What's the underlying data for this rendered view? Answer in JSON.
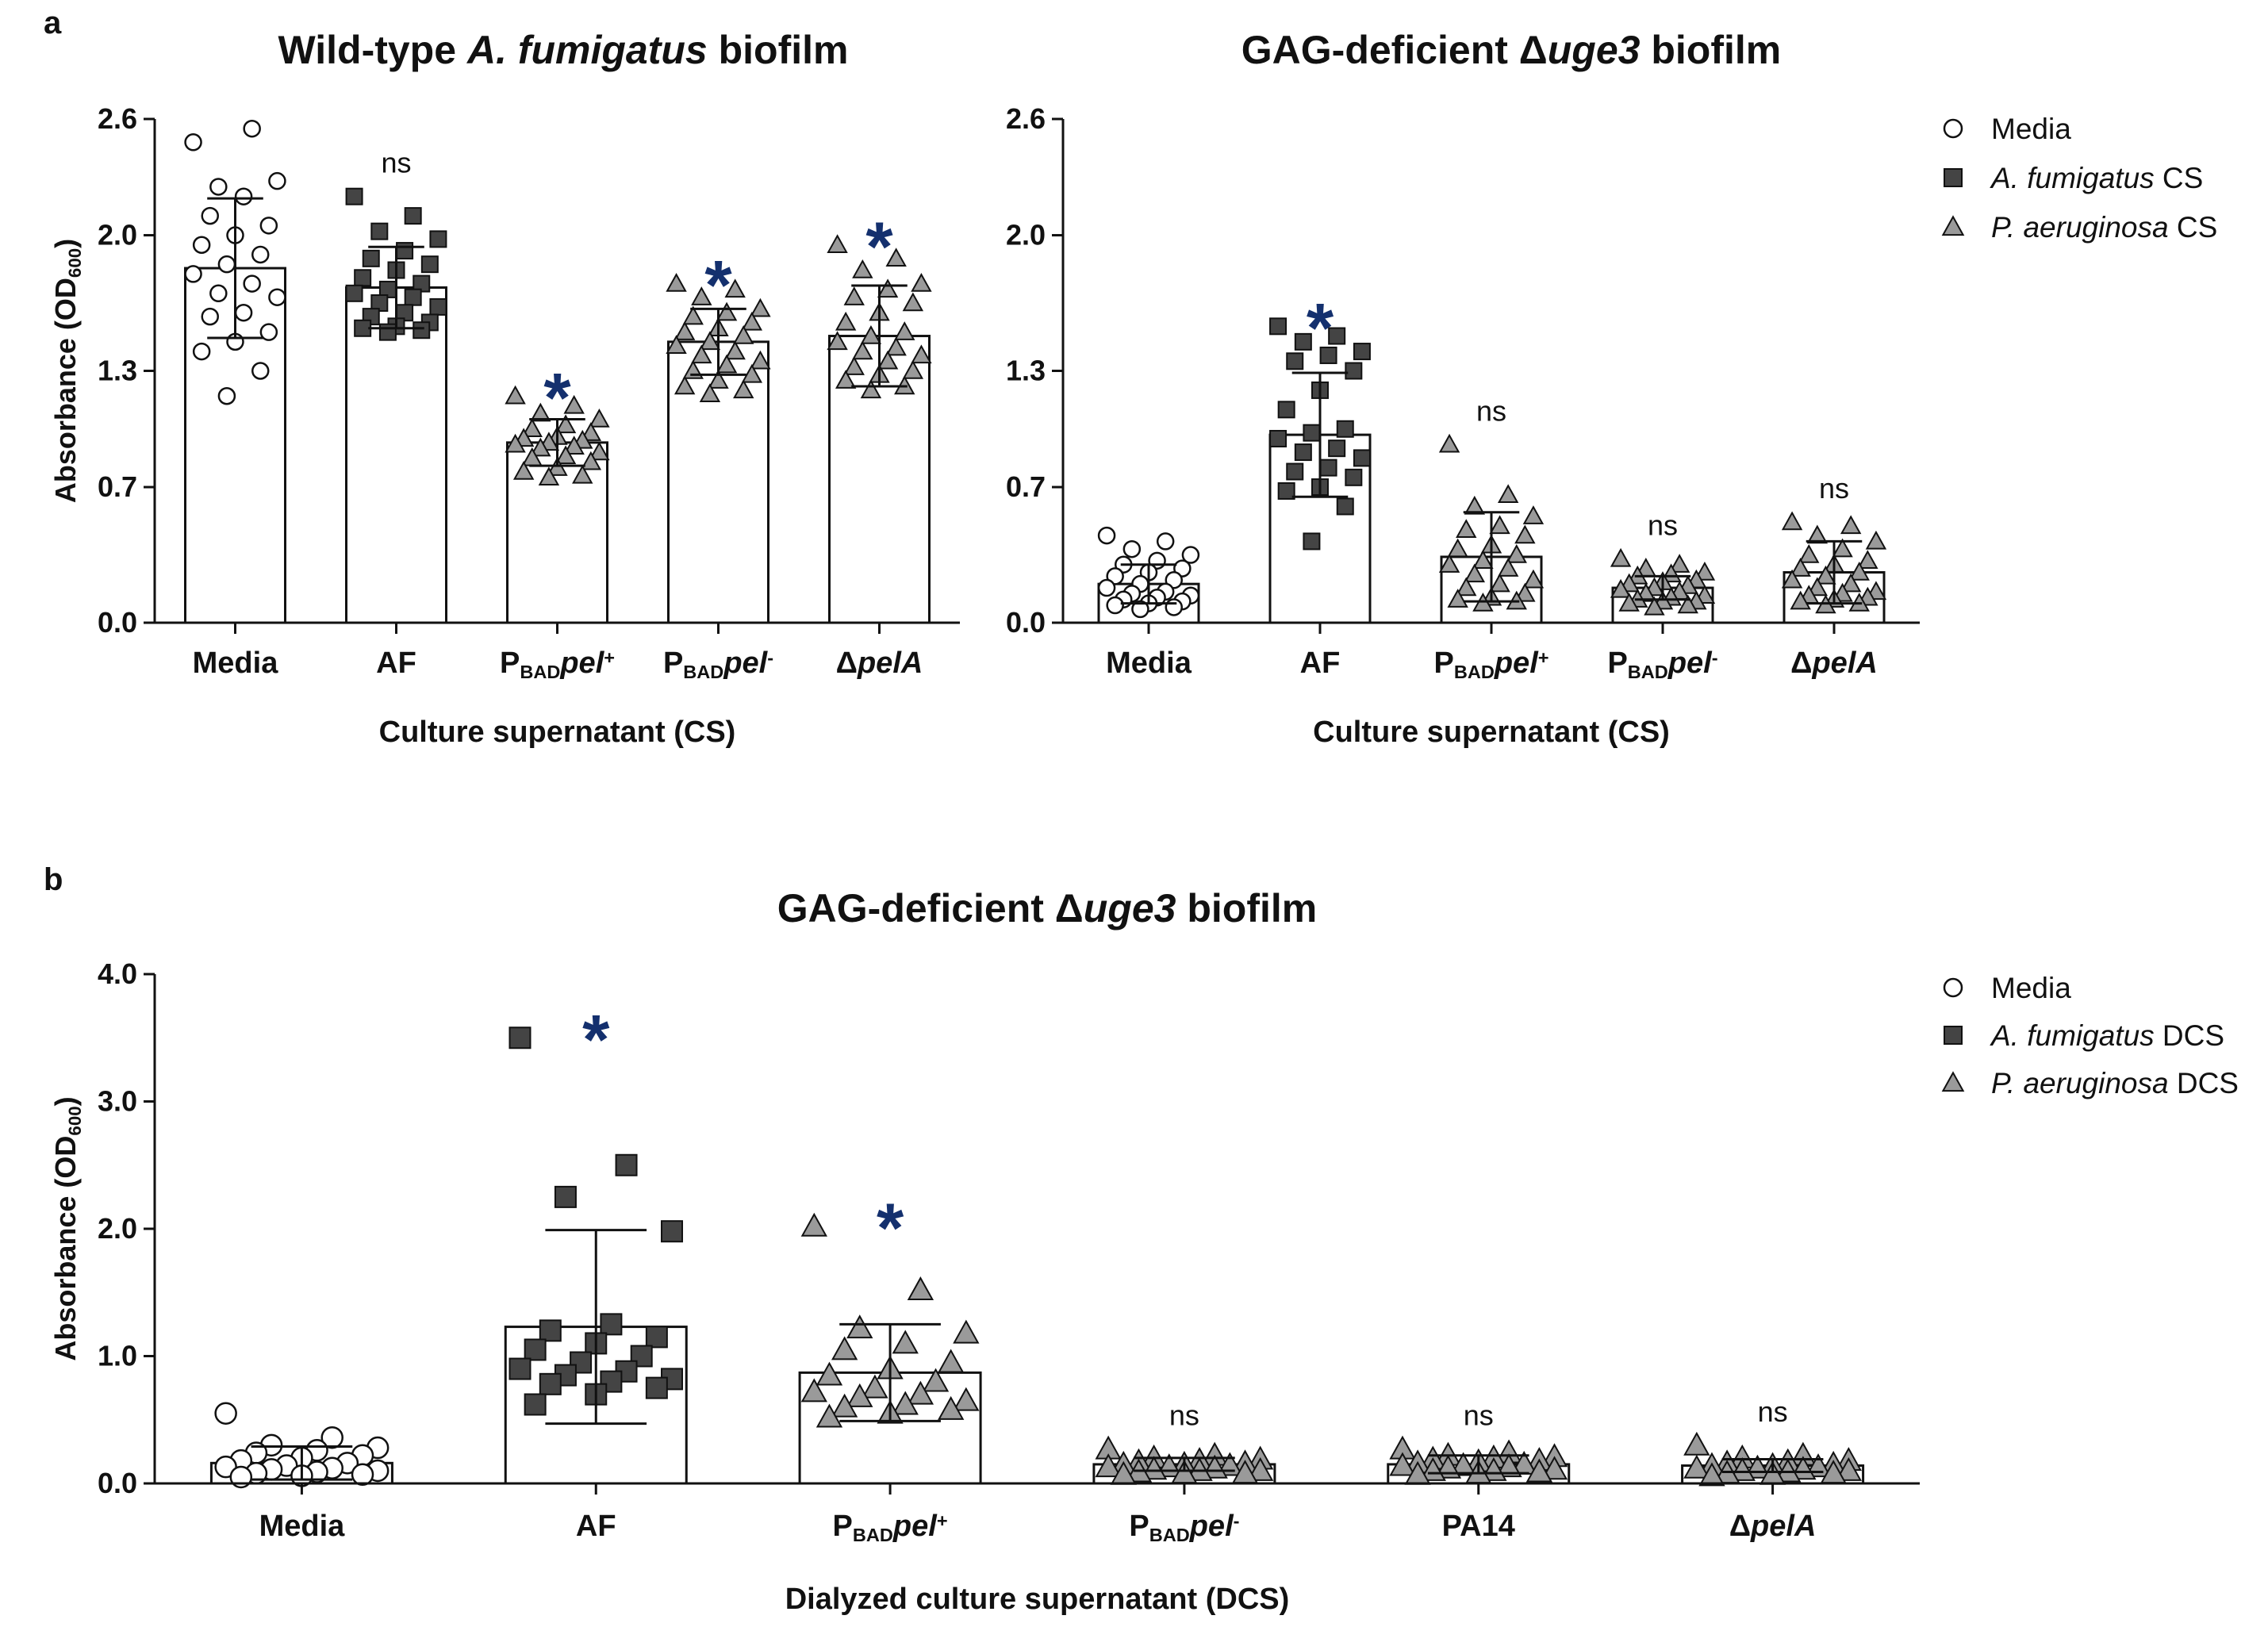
{
  "panel_labels": {
    "a": "a",
    "b": "b"
  },
  "colors": {
    "star": "#14306e",
    "square": "#444444",
    "triangle": "#9a9a9a",
    "circle": "#ffffff",
    "stroke": "#111111"
  },
  "chart_data": [
    {
      "id": "a1",
      "type": "bar",
      "title_parts": [
        {
          "text": "Wild-type ",
          "italic": false
        },
        {
          "text": "A. fumigatus",
          "italic": true
        },
        {
          "text": " biofilm",
          "italic": false
        }
      ],
      "ylabel": "Absorbance (OD",
      "ylabel_sub": "600",
      "ylabel_end": ")",
      "xlabel": "Culture supernatant (CS)",
      "ylim": [
        0,
        2.6
      ],
      "yticks": [
        "0.0",
        "0.7",
        "1.3",
        "2.0",
        "2.6"
      ],
      "categories": [
        {
          "parts": [
            {
              "text": "Media"
            }
          ]
        },
        {
          "parts": [
            {
              "text": "AF"
            }
          ]
        },
        {
          "parts": [
            {
              "text": "P"
            },
            {
              "text": "BAD",
              "sub": true
            },
            {
              "text": "pel",
              "italic": true
            },
            {
              "text": "+",
              "sup": true
            }
          ]
        },
        {
          "parts": [
            {
              "text": "P"
            },
            {
              "text": "BAD",
              "sub": true
            },
            {
              "text": "pel",
              "italic": true
            },
            {
              "text": "-",
              "sup": true
            }
          ]
        },
        {
          "parts": [
            {
              "text": "Δ"
            },
            {
              "text": "pelA",
              "italic": true
            }
          ]
        }
      ],
      "means": [
        1.83,
        1.73,
        0.93,
        1.45,
        1.48
      ],
      "sd": [
        0.36,
        0.21,
        0.12,
        0.17,
        0.26
      ],
      "markers": [
        "circle",
        "square",
        "triangle",
        "triangle",
        "triangle"
      ],
      "points": [
        [
          2.48,
          2.55,
          2.25,
          2.28,
          2.2,
          2.1,
          2.05,
          2.0,
          1.95,
          1.9,
          1.85,
          1.8,
          1.75,
          1.7,
          1.68,
          1.6,
          1.58,
          1.5,
          1.45,
          1.4,
          1.3,
          1.17
        ],
        [
          2.2,
          2.1,
          2.02,
          1.98,
          1.92,
          1.88,
          1.85,
          1.82,
          1.78,
          1.75,
          1.72,
          1.7,
          1.68,
          1.65,
          1.63,
          1.6,
          1.58,
          1.55,
          1.53,
          1.52,
          1.51,
          1.5
        ],
        [
          1.17,
          1.12,
          1.08,
          1.05,
          1.02,
          1.0,
          0.98,
          0.96,
          0.95,
          0.94,
          0.93,
          0.92,
          0.91,
          0.9,
          0.88,
          0.86,
          0.85,
          0.83,
          0.8,
          0.78,
          0.76,
          0.75
        ],
        [
          1.75,
          1.72,
          1.68,
          1.62,
          1.6,
          1.58,
          1.55,
          1.52,
          1.5,
          1.48,
          1.45,
          1.43,
          1.4,
          1.38,
          1.35,
          1.33,
          1.3,
          1.28,
          1.25,
          1.22,
          1.2,
          1.18
        ],
        [
          1.95,
          1.88,
          1.82,
          1.75,
          1.72,
          1.68,
          1.65,
          1.6,
          1.55,
          1.5,
          1.48,
          1.45,
          1.42,
          1.4,
          1.38,
          1.35,
          1.32,
          1.3,
          1.28,
          1.25,
          1.22,
          1.2
        ]
      ],
      "annotations": [
        "",
        "ns",
        "*",
        "*",
        "*"
      ],
      "legend": null
    },
    {
      "id": "a2",
      "type": "bar",
      "title_parts": [
        {
          "text": "GAG-deficient Δ",
          "italic": false
        },
        {
          "text": "uge3",
          "italic": true
        },
        {
          "text": " biofilm",
          "italic": false
        }
      ],
      "ylabel": "",
      "xlabel": "Culture supernatant (CS)",
      "ylim": [
        0,
        2.6
      ],
      "yticks": [
        "0.0",
        "0.7",
        "1.3",
        "2.0",
        "2.6"
      ],
      "categories": [
        {
          "parts": [
            {
              "text": "Media"
            }
          ]
        },
        {
          "parts": [
            {
              "text": "AF"
            }
          ]
        },
        {
          "parts": [
            {
              "text": "P"
            },
            {
              "text": "BAD",
              "sub": true
            },
            {
              "text": "pel",
              "italic": true
            },
            {
              "text": "+",
              "sup": true
            }
          ]
        },
        {
          "parts": [
            {
              "text": "P"
            },
            {
              "text": "BAD",
              "sub": true
            },
            {
              "text": "pel",
              "italic": true
            },
            {
              "text": "-",
              "sup": true
            }
          ]
        },
        {
          "parts": [
            {
              "text": "Δ"
            },
            {
              "text": "pelA",
              "italic": true
            }
          ]
        }
      ],
      "means": [
        0.2,
        0.97,
        0.34,
        0.18,
        0.26
      ],
      "sd": [
        0.1,
        0.32,
        0.23,
        0.06,
        0.16
      ],
      "markers": [
        "circle",
        "square",
        "triangle",
        "triangle",
        "triangle"
      ],
      "points": [
        [
          0.45,
          0.42,
          0.38,
          0.35,
          0.32,
          0.3,
          0.28,
          0.26,
          0.24,
          0.22,
          0.2,
          0.18,
          0.16,
          0.15,
          0.14,
          0.13,
          0.12,
          0.11,
          0.1,
          0.09,
          0.08,
          0.07
        ],
        [
          1.53,
          1.48,
          1.45,
          1.4,
          1.38,
          1.35,
          1.3,
          1.2,
          1.1,
          1.0,
          0.98,
          0.95,
          0.9,
          0.88,
          0.85,
          0.8,
          0.78,
          0.75,
          0.7,
          0.68,
          0.6,
          0.42
        ],
        [
          0.92,
          0.66,
          0.6,
          0.55,
          0.5,
          0.48,
          0.45,
          0.4,
          0.38,
          0.35,
          0.32,
          0.3,
          0.28,
          0.25,
          0.22,
          0.2,
          0.18,
          0.15,
          0.13,
          0.12,
          0.11,
          0.1
        ],
        [
          0.33,
          0.3,
          0.28,
          0.26,
          0.25,
          0.24,
          0.22,
          0.21,
          0.2,
          0.19,
          0.18,
          0.17,
          0.16,
          0.15,
          0.14,
          0.13,
          0.12,
          0.11,
          0.11,
          0.1,
          0.09,
          0.08
        ],
        [
          0.52,
          0.5,
          0.45,
          0.42,
          0.38,
          0.35,
          0.32,
          0.3,
          0.28,
          0.26,
          0.24,
          0.22,
          0.2,
          0.18,
          0.16,
          0.15,
          0.14,
          0.13,
          0.12,
          0.11,
          0.1,
          0.09
        ]
      ],
      "annotations": [
        "",
        "*",
        "ns",
        "ns",
        "ns"
      ],
      "legend": [
        {
          "marker": "circle",
          "parts": [
            {
              "text": "Media"
            }
          ]
        },
        {
          "marker": "square",
          "parts": [
            {
              "text": "A. fumigatus",
              "italic": true
            },
            {
              "text": " CS"
            }
          ]
        },
        {
          "marker": "triangle",
          "parts": [
            {
              "text": "P. aeruginosa",
              "italic": true
            },
            {
              "text": " CS"
            }
          ]
        }
      ]
    },
    {
      "id": "b",
      "type": "bar",
      "title_parts": [
        {
          "text": "GAG-deficient Δ",
          "italic": false
        },
        {
          "text": "uge3",
          "italic": true
        },
        {
          "text": " biofilm",
          "italic": false
        }
      ],
      "ylabel": "Absorbance (OD",
      "ylabel_sub": "600",
      "ylabel_end": ")",
      "xlabel": "Dialyzed culture supernatant (DCS)",
      "ylim": [
        0,
        4.0
      ],
      "yticks": [
        "0.0",
        "1.0",
        "2.0",
        "3.0",
        "4.0"
      ],
      "categories": [
        {
          "parts": [
            {
              "text": "Media"
            }
          ]
        },
        {
          "parts": [
            {
              "text": "AF"
            }
          ]
        },
        {
          "parts": [
            {
              "text": "P"
            },
            {
              "text": "BAD",
              "sub": true
            },
            {
              "text": "pel",
              "italic": true
            },
            {
              "text": "+",
              "sup": true
            }
          ]
        },
        {
          "parts": [
            {
              "text": "P"
            },
            {
              "text": "BAD",
              "sub": true
            },
            {
              "text": "pel",
              "italic": true
            },
            {
              "text": "-",
              "sup": true
            }
          ]
        },
        {
          "parts": [
            {
              "text": "PA14"
            }
          ]
        },
        {
          "parts": [
            {
              "text": "Δ"
            },
            {
              "text": "pelA",
              "italic": true
            }
          ]
        }
      ],
      "means": [
        0.16,
        1.23,
        0.87,
        0.15,
        0.15,
        0.14
      ],
      "sd": [
        0.13,
        0.76,
        0.38,
        0.05,
        0.07,
        0.05
      ],
      "markers": [
        "circle",
        "square",
        "triangle",
        "triangle",
        "triangle",
        "triangle"
      ],
      "points": [
        [
          0.55,
          0.36,
          0.3,
          0.28,
          0.26,
          0.24,
          0.22,
          0.2,
          0.18,
          0.16,
          0.14,
          0.13,
          0.12,
          0.11,
          0.1,
          0.09,
          0.08,
          0.07,
          0.06,
          0.05
        ],
        [
          3.5,
          2.5,
          2.25,
          1.98,
          1.25,
          1.2,
          1.15,
          1.1,
          1.05,
          1.0,
          0.95,
          0.9,
          0.88,
          0.85,
          0.82,
          0.8,
          0.78,
          0.75,
          0.7,
          0.62
        ],
        [
          2.02,
          1.52,
          1.22,
          1.18,
          1.1,
          1.05,
          0.95,
          0.9,
          0.85,
          0.8,
          0.75,
          0.72,
          0.7,
          0.68,
          0.65,
          0.62,
          0.6,
          0.58,
          0.55,
          0.52
        ],
        [
          0.27,
          0.22,
          0.2,
          0.19,
          0.18,
          0.17,
          0.16,
          0.15,
          0.15,
          0.14,
          0.13,
          0.13,
          0.12,
          0.11,
          0.1,
          0.1,
          0.09,
          0.08,
          0.08,
          0.07
        ],
        [
          0.27,
          0.24,
          0.22,
          0.21,
          0.2,
          0.19,
          0.18,
          0.17,
          0.16,
          0.15,
          0.14,
          0.14,
          0.13,
          0.12,
          0.11,
          0.1,
          0.1,
          0.09,
          0.08,
          0.07
        ],
        [
          0.3,
          0.22,
          0.2,
          0.18,
          0.17,
          0.16,
          0.15,
          0.14,
          0.14,
          0.13,
          0.12,
          0.12,
          0.11,
          0.1,
          0.1,
          0.09,
          0.08,
          0.08,
          0.07,
          0.06
        ]
      ],
      "annotations": [
        "",
        "*",
        "*",
        "ns",
        "ns",
        "ns"
      ],
      "legend": [
        {
          "marker": "circle",
          "parts": [
            {
              "text": "Media"
            }
          ]
        },
        {
          "marker": "square",
          "parts": [
            {
              "text": "A. fumigatus",
              "italic": true
            },
            {
              "text": " DCS"
            }
          ]
        },
        {
          "marker": "triangle",
          "parts": [
            {
              "text": "P. aeruginosa",
              "italic": true
            },
            {
              "text": " DCS"
            }
          ]
        }
      ]
    }
  ]
}
